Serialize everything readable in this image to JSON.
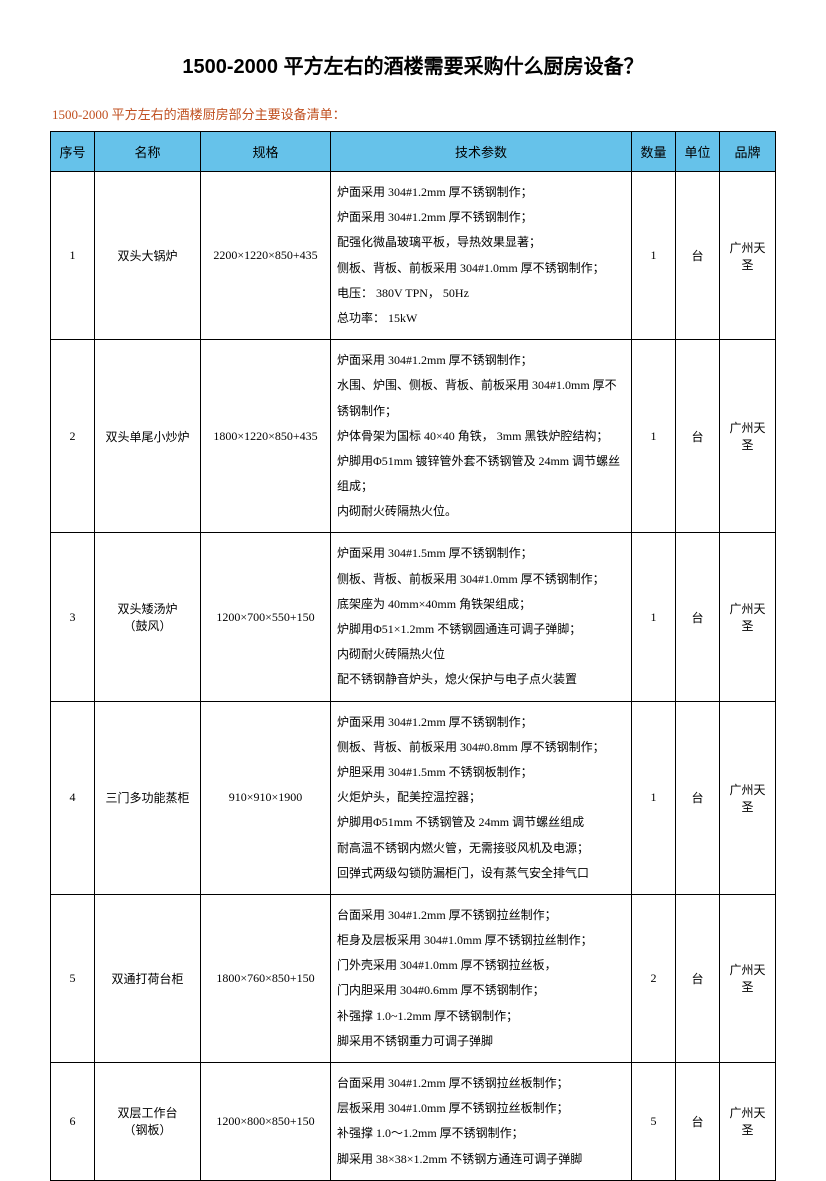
{
  "title": "1500-2000 平方左右的酒楼需要采购什么厨房设备？",
  "subtitle": "1500-2000 平方左右的酒楼厨房部分主要设备清单：",
  "headers": {
    "no": "序号",
    "name": "名称",
    "spec": "规格",
    "tech": "技术参数",
    "qty": "数量",
    "unit": "单位",
    "brand": "品牌"
  },
  "rows": [
    {
      "no": "1",
      "name": "双头大锅炉",
      "spec": "2200×1220×850+435",
      "tech": [
        "炉面采用 304#1.2mm 厚不锈钢制作；",
        "炉面采用 304#1.2mm 厚不锈钢制作；",
        "配强化微晶玻璃平板，导热效果显著；",
        "侧板、背板、前板采用 304#1.0mm 厚不锈钢制作；",
        "电压： 380V TPN，  50Hz",
        "总功率： 15kW"
      ],
      "qty": "1",
      "unit": "台",
      "brand": "广州天圣"
    },
    {
      "no": "2",
      "name": "双头单尾小炒炉",
      "spec": "1800×1220×850+435",
      "tech": [
        "炉面采用 304#1.2mm 厚不锈钢制作；",
        "水围、炉围、侧板、背板、前板采用 304#1.0mm 厚不锈钢制作；",
        "炉体骨架为国标 40×40 角铁， 3mm 黑铁炉腔结构；",
        "炉脚用Φ51mm 镀锌管外套不锈钢管及 24mm 调节螺丝组成；",
        "内砌耐火砖隔热火位。"
      ],
      "qty": "1",
      "unit": "台",
      "brand": "广州天圣"
    },
    {
      "no": "3",
      "name": "双头矮汤炉\n（鼓风）",
      "spec": "1200×700×550+150",
      "tech": [
        "炉面采用 304#1.5mm 厚不锈钢制作；",
        "侧板、背板、前板采用 304#1.0mm 厚不锈钢制作；",
        "底架座为 40mm×40mm 角铁架组成；",
        "炉脚用Φ51×1.2mm 不锈钢圆通连可调子弹脚；",
        "内砌耐火砖隔热火位",
        "配不锈钢静音炉头，熄火保护与电子点火装置"
      ],
      "qty": "1",
      "unit": "台",
      "brand": "广州天圣"
    },
    {
      "no": "4",
      "name": "三门多功能蒸柜",
      "spec": "910×910×1900",
      "tech": [
        "炉面采用 304#1.2mm 厚不锈钢制作；",
        "侧板、背板、前板采用 304#0.8mm 厚不锈钢制作；",
        "炉胆采用 304#1.5mm 不锈钢板制作；",
        "火炬炉头，配美控温控器；",
        "炉脚用Φ51mm 不锈钢管及 24mm 调节螺丝组成",
        "耐高温不锈钢内燃火管，无需接驳风机及电源；",
        "回弹式两级勾锁防漏柜门，设有蒸气安全排气口"
      ],
      "qty": "1",
      "unit": "台",
      "brand": "广州天圣"
    },
    {
      "no": "5",
      "name": "双通打荷台柜",
      "spec": "1800×760×850+150",
      "tech": [
        "台面采用 304#1.2mm 厚不锈钢拉丝制作；",
        "柜身及层板采用 304#1.0mm 厚不锈钢拉丝制作；",
        "门外壳采用 304#1.0mm 厚不锈钢拉丝板，",
        "门内胆采用 304#0.6mm 厚不锈钢制作；",
        "补强撑 1.0~1.2mm 厚不锈钢制作；",
        "脚采用不锈钢重力可调子弹脚"
      ],
      "qty": "2",
      "unit": "台",
      "brand": "广州天圣"
    },
    {
      "no": "6",
      "name": "双层工作台\n（钢板）",
      "spec": "1200×800×850+150",
      "tech": [
        "台面采用 304#1.2mm 厚不锈钢拉丝板制作；",
        "层板采用 304#1.0mm 厚不锈钢拉丝板制作；",
        "补强撑 1.0～1.2mm 厚不锈钢制作；",
        "脚采用 38×38×1.2mm 不锈钢方通连可调子弹脚"
      ],
      "qty": "5",
      "unit": "台",
      "brand": "广州天圣"
    }
  ],
  "colors": {
    "header_bg": "#66c2ea",
    "subtitle_color": "#c05020",
    "border": "#000000",
    "background": "#ffffff"
  }
}
